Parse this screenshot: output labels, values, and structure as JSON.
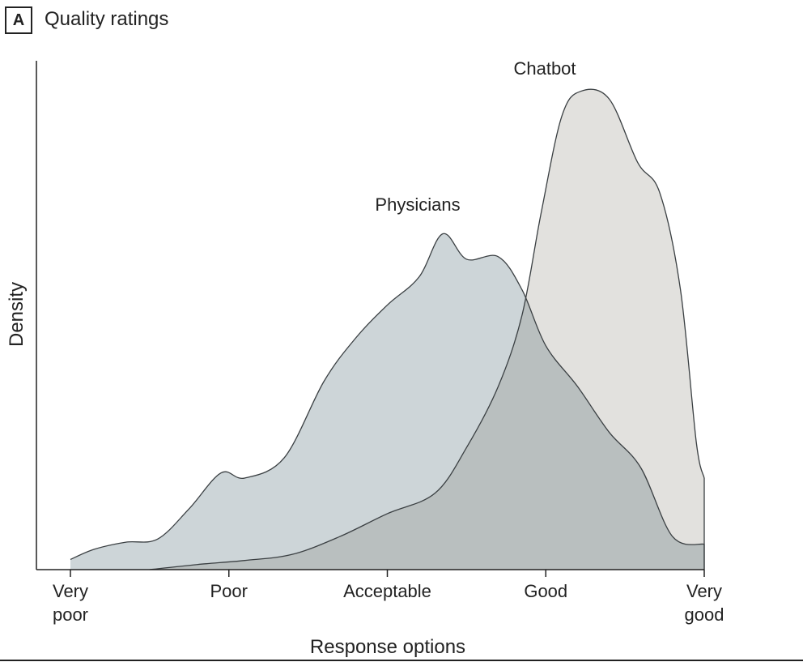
{
  "panel": {
    "letter": "A",
    "title": "Quality ratings"
  },
  "chart_data": {
    "type": "area",
    "xlabel": "Response options",
    "ylabel": "Density",
    "xlim": [
      1,
      5
    ],
    "ylim": [
      0,
      1.0
    ],
    "categories": [
      {
        "x": 1,
        "lines": [
          "Very",
          "poor"
        ]
      },
      {
        "x": 2,
        "lines": [
          "Poor"
        ]
      },
      {
        "x": 3,
        "lines": [
          "Acceptable"
        ]
      },
      {
        "x": 4,
        "lines": [
          "Good"
        ]
      },
      {
        "x": 5,
        "lines": [
          "Very",
          "good"
        ]
      }
    ],
    "series": [
      {
        "name": "Physicians",
        "fill": "#cdd5d8",
        "points": [
          [
            1.0,
            0.02
          ],
          [
            1.15,
            0.04
          ],
          [
            1.35,
            0.054
          ],
          [
            1.55,
            0.06
          ],
          [
            1.75,
            0.12
          ],
          [
            1.95,
            0.19
          ],
          [
            2.1,
            0.18
          ],
          [
            2.35,
            0.22
          ],
          [
            2.6,
            0.37
          ],
          [
            2.8,
            0.455
          ],
          [
            3.0,
            0.52
          ],
          [
            3.2,
            0.575
          ],
          [
            3.35,
            0.66
          ],
          [
            3.5,
            0.61
          ],
          [
            3.7,
            0.615
          ],
          [
            3.85,
            0.55
          ],
          [
            4.0,
            0.44
          ],
          [
            4.2,
            0.36
          ],
          [
            4.4,
            0.27
          ],
          [
            4.6,
            0.2
          ],
          [
            4.8,
            0.065
          ],
          [
            5.0,
            0.05
          ]
        ]
      },
      {
        "name": "Chatbot",
        "fill": "#e2e1de",
        "points": [
          [
            1.5,
            0.0
          ],
          [
            1.8,
            0.01
          ],
          [
            2.1,
            0.018
          ],
          [
            2.4,
            0.03
          ],
          [
            2.7,
            0.065
          ],
          [
            3.0,
            0.11
          ],
          [
            3.3,
            0.15
          ],
          [
            3.5,
            0.24
          ],
          [
            3.7,
            0.36
          ],
          [
            3.85,
            0.5
          ],
          [
            3.97,
            0.7
          ],
          [
            4.1,
            0.89
          ],
          [
            4.22,
            0.94
          ],
          [
            4.4,
            0.925
          ],
          [
            4.58,
            0.8
          ],
          [
            4.72,
            0.74
          ],
          [
            4.85,
            0.55
          ],
          [
            4.95,
            0.25
          ],
          [
            5.0,
            0.18
          ]
        ]
      }
    ],
    "overlap_fill": "#b9bfbf",
    "grid": false,
    "legend": "direct labels"
  }
}
